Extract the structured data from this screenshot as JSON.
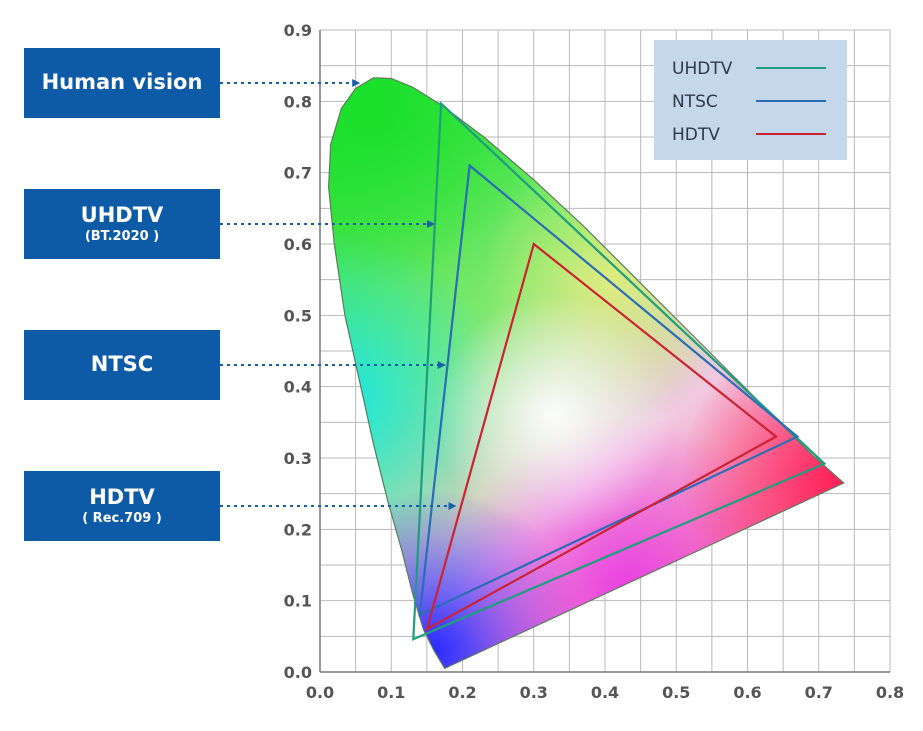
{
  "chart_data": {
    "type": "scatter",
    "title": "",
    "xlabel": "",
    "ylabel": "",
    "xlim": [
      0.0,
      0.8
    ],
    "ylim": [
      0.0,
      0.9
    ],
    "x_ticks": [
      "0.0",
      "0.1",
      "0.2",
      "0.3",
      "0.4",
      "0.5",
      "0.6",
      "0.7",
      "0.8"
    ],
    "y_ticks": [
      "0.0",
      "0.1",
      "0.2",
      "0.3",
      "0.4",
      "0.5",
      "0.6",
      "0.7",
      "0.8",
      "0.9"
    ],
    "grid": true,
    "legend_position": "top-right",
    "spectral_locus": [
      [
        0.175,
        0.005
      ],
      [
        0.16,
        0.03
      ],
      [
        0.145,
        0.06
      ],
      [
        0.13,
        0.11
      ],
      [
        0.115,
        0.17
      ],
      [
        0.095,
        0.24
      ],
      [
        0.075,
        0.32
      ],
      [
        0.055,
        0.41
      ],
      [
        0.035,
        0.5
      ],
      [
        0.02,
        0.6
      ],
      [
        0.012,
        0.68
      ],
      [
        0.015,
        0.74
      ],
      [
        0.03,
        0.79
      ],
      [
        0.05,
        0.818
      ],
      [
        0.075,
        0.833
      ],
      [
        0.1,
        0.832
      ],
      [
        0.13,
        0.82
      ],
      [
        0.17,
        0.795
      ],
      [
        0.23,
        0.75
      ],
      [
        0.3,
        0.69
      ],
      [
        0.37,
        0.625
      ],
      [
        0.44,
        0.555
      ],
      [
        0.51,
        0.485
      ],
      [
        0.58,
        0.415
      ],
      [
        0.64,
        0.355
      ],
      [
        0.69,
        0.305
      ],
      [
        0.735,
        0.265
      ]
    ],
    "series": [
      {
        "name": "UHDTV",
        "color": "#1f9e7d",
        "points": [
          [
            0.17,
            0.797
          ],
          [
            0.708,
            0.292
          ],
          [
            0.131,
            0.046
          ]
        ]
      },
      {
        "name": "NTSC",
        "color": "#2a6db5",
        "points": [
          [
            0.21,
            0.71
          ],
          [
            0.67,
            0.33
          ],
          [
            0.14,
            0.08
          ]
        ]
      },
      {
        "name": "HDTV",
        "color": "#cc2233",
        "points": [
          [
            0.3,
            0.6
          ],
          [
            0.64,
            0.33
          ],
          [
            0.15,
            0.06
          ]
        ]
      }
    ],
    "annotations": [
      {
        "main": "Human vision",
        "sub": "",
        "target": [
          0.055,
          0.83
        ]
      },
      {
        "main": "UHDTV",
        "sub": "(BT.2020 )",
        "target": [
          0.16,
          0.63
        ]
      },
      {
        "main": "NTSC",
        "sub": "",
        "target": [
          0.175,
          0.43
        ]
      },
      {
        "main": "HDTV",
        "sub": "( Rec.709 )",
        "target": [
          0.19,
          0.23
        ]
      }
    ]
  },
  "labels": {
    "human_vision": "Human vision",
    "uhdtv_main": "UHDTV",
    "uhdtv_sub": "(BT.2020 )",
    "ntsc_main": "NTSC",
    "hdtv_main": "HDTV",
    "hdtv_sub": "( Rec.709 )"
  },
  "colors": {
    "label_box": "#0d5aa7",
    "arrow": "#1a5fa6",
    "grid": "#b9b9b9",
    "legend_bg": "#c5d7ea"
  }
}
